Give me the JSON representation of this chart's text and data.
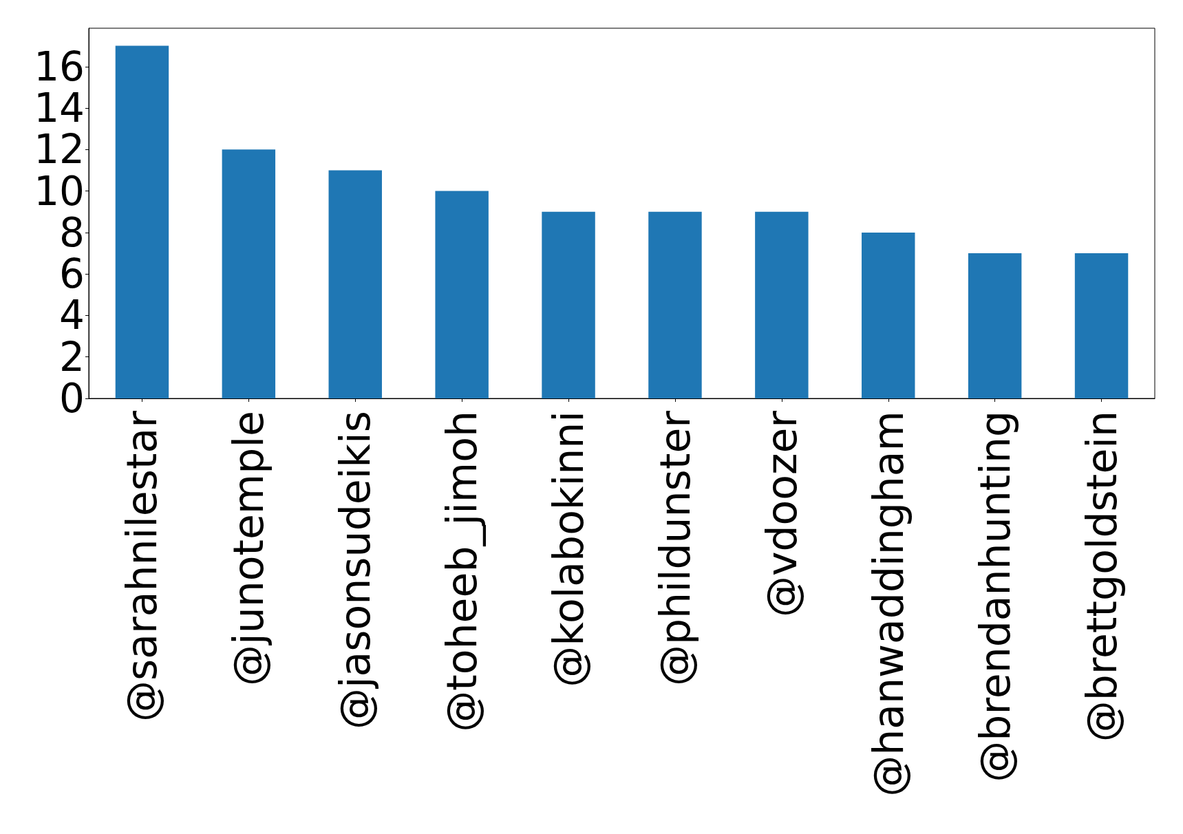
{
  "chart_data": {
    "type": "bar",
    "categories": [
      "@sarahnilestar",
      "@junotemple",
      "@jasonsudeikis",
      "@toheeb_jimoh",
      "@kolabokinni",
      "@phildunster",
      "@vdoozer",
      "@hanwaddingham",
      "@brendanhunting",
      "@brettgoldstein"
    ],
    "values": [
      17,
      12,
      11,
      10,
      9,
      9,
      9,
      8,
      7,
      7
    ],
    "color": "#1f77b4",
    "ylim": [
      0,
      17.85
    ],
    "yticks": [
      0,
      2,
      4,
      6,
      8,
      10,
      12,
      14,
      16
    ],
    "grid": false
  }
}
